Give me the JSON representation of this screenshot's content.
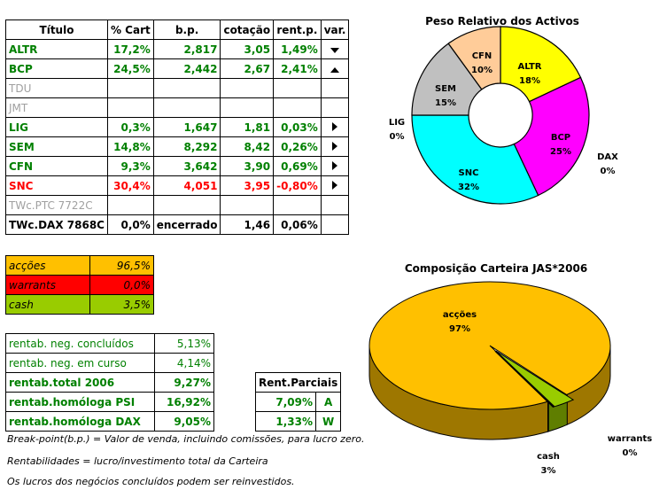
{
  "portfolio": {
    "headers": [
      "Título",
      "% Cart",
      "b.p.",
      "cotação",
      "rent.p.",
      "var."
    ],
    "rows": [
      {
        "name": "ALTR",
        "pct": "17,2%",
        "bp": "2,817",
        "quote": "3,05",
        "rent": "1,49%",
        "var": "down",
        "color": "green"
      },
      {
        "name": "BCP",
        "pct": "24,5%",
        "bp": "2,442",
        "quote": "2,67",
        "rent": "2,41%",
        "var": "up",
        "color": "green"
      },
      {
        "name": "TDU",
        "pct": "",
        "bp": "",
        "quote": "",
        "rent": "",
        "var": "",
        "color": "gray"
      },
      {
        "name": "JMT",
        "pct": "",
        "bp": "",
        "quote": "",
        "rent": "",
        "var": "",
        "color": "gray"
      },
      {
        "name": "LIG",
        "pct": "0,3%",
        "bp": "1,647",
        "quote": "1,81",
        "rent": "0,03%",
        "var": "right",
        "color": "green"
      },
      {
        "name": "SEM",
        "pct": "14,8%",
        "bp": "8,292",
        "quote": "8,42",
        "rent": "0,26%",
        "var": "right",
        "color": "green"
      },
      {
        "name": "CFN",
        "pct": "9,3%",
        "bp": "3,642",
        "quote": "3,90",
        "rent": "0,69%",
        "var": "right",
        "color": "green"
      },
      {
        "name": "SNC",
        "pct": "30,4%",
        "bp": "4,051",
        "quote": "3,95",
        "rent": "-0,80%",
        "var": "right",
        "color": "red"
      },
      {
        "name": "TWc.PTC 7722C",
        "pct": "",
        "bp": "",
        "quote": "",
        "rent": "",
        "var": "",
        "color": "gray"
      },
      {
        "name": "TWc.DAX 7868C",
        "pct": "0,0%",
        "bp": "encerrado",
        "quote": "1,46",
        "rent": "0,06%",
        "var": "",
        "color": "black"
      }
    ]
  },
  "allocation": [
    {
      "label": "acções",
      "value": "96,5%",
      "bg": "#ffc000"
    },
    {
      "label": "warrants",
      "value": "0,0%",
      "bg": "#ff0000"
    },
    {
      "label": "cash",
      "value": "3,5%",
      "bg": "#99cc00"
    }
  ],
  "returns": [
    {
      "label": "rentab. neg. concluídos",
      "value": "5,13%",
      "bold": false
    },
    {
      "label": "rentab. neg. em curso",
      "value": "4,14%",
      "bold": false
    },
    {
      "label": "rentab.total 2006",
      "value": "9,27%",
      "bold": true
    },
    {
      "label": "rentab.homóloga PSI",
      "value": "16,92%",
      "bold": true
    },
    {
      "label": "rentab.homóloga DAX",
      "value": "9,05%",
      "bold": true
    }
  ],
  "partial": {
    "header": "Rent.Parciais",
    "rows": [
      {
        "value": "7,09%",
        "code": "A"
      },
      {
        "value": "1,33%",
        "code": "W"
      }
    ]
  },
  "notes": [
    "Break-point(b.p.) = Valor de venda, incluindo comissões, para lucro zero.",
    "Rentabilidades = lucro/investimento total da Carteira",
    "Os lucros dos negócios concluídos podem ser reinvestidos."
  ],
  "chart_data": [
    {
      "type": "pie",
      "title": "Peso Relativo dos Activos",
      "labels": [
        "ALTR",
        "BCP",
        "DAX",
        "SNC",
        "LIG",
        "SEM",
        "CFN"
      ],
      "values": [
        18,
        25,
        0,
        32,
        0,
        15,
        10
      ],
      "value_labels": [
        "18%",
        "25%",
        "0%",
        "32%",
        "0%",
        "15%",
        "10%"
      ],
      "colors": [
        "#ffff00",
        "#ff00ff",
        "#ffffff",
        "#00ffff",
        "#ffffff",
        "#c0c0c0",
        "#ffcc99"
      ]
    },
    {
      "type": "pie",
      "title": "Composição Carteira JAS*2006",
      "labels": [
        "acções",
        "warrants",
        "cash"
      ],
      "values": [
        97,
        0,
        3
      ],
      "value_labels": [
        "97%",
        "0%",
        "3%"
      ],
      "colors": [
        "#ffc000",
        "#cc0000",
        "#99cc00"
      ]
    }
  ]
}
